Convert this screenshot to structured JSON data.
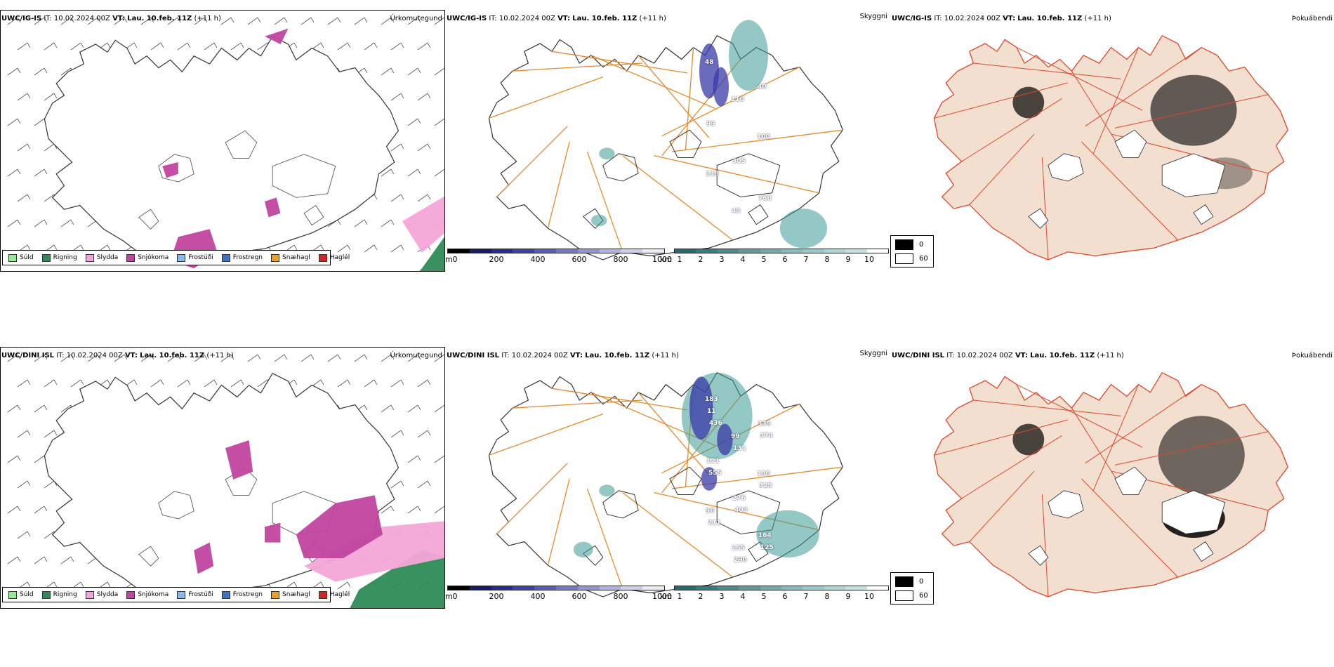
{
  "rows": [
    {
      "model": "UWC/IG-IS",
      "it_label": "IT:",
      "it_value": "10.02.2024 00Z",
      "vt_label": "VT:",
      "vt_value": "Lau. 10.feb. 11Z",
      "lead": "(+11 h)",
      "panel_titles": [
        "Úrkomutegund",
        "Skyggni",
        "Þokuábendi"
      ],
      "visibility_labels": [
        "48",
        "110",
        "100",
        "118",
        "43",
        "40",
        "99",
        "305",
        "760"
      ]
    },
    {
      "model": "UWC/DINI ISL",
      "it_label": "IT:",
      "it_value": "10.02.2024 00Z",
      "vt_label": "VT:",
      "vt_value": "Lau. 10.feb. 11Z",
      "lead": "(+11 h)",
      "panel_titles": [
        "Úrkomutegund",
        "Skyggni",
        "Þokuábendi"
      ],
      "visibility_labels": [
        "183",
        "99",
        "136",
        "96",
        "155",
        "335",
        "121",
        "276",
        "164",
        "11",
        "131",
        "325",
        "211",
        "290",
        "374",
        "555",
        "403",
        "125",
        "436"
      ]
    }
  ],
  "precip_legend": [
    {
      "label": "Súld",
      "color": "#90ee90"
    },
    {
      "label": "Rigning",
      "color": "#2e8b57"
    },
    {
      "label": "Slydda",
      "color": "#f4a6d7"
    },
    {
      "label": "Snjókoma",
      "color": "#c0449e"
    },
    {
      "label": "Frostúði",
      "color": "#87b9f0"
    },
    {
      "label": "Frostregn",
      "color": "#3b73c8"
    },
    {
      "label": "Snæhagl",
      "color": "#f0a020"
    },
    {
      "label": "Haglél",
      "color": "#e02020"
    }
  ],
  "ceiling_scale": {
    "unit": "m",
    "ticks": [
      "0",
      "200",
      "400",
      "600",
      "800",
      "1000"
    ],
    "colors": [
      "#000000",
      "#1a1a6e",
      "#2b2b9a",
      "#4040b0",
      "#5a5ac4",
      "#7777cf",
      "#9494da",
      "#b2b2e5",
      "#cfcff0",
      "#ececf8"
    ]
  },
  "visibility_scale": {
    "unit": "km",
    "ticks": [
      "1",
      "2",
      "3",
      "4",
      "5",
      "6",
      "7",
      "8",
      "9",
      "10"
    ],
    "colors": [
      "#1f6f6f",
      "#2f8080",
      "#449090",
      "#58a0a0",
      "#6cb0b0",
      "#80c0c0",
      "#96cccc",
      "#acd8d8",
      "#c4e4e4",
      "#ffffff"
    ]
  },
  "fog_key": [
    {
      "label": "0",
      "color": "#000000"
    },
    {
      "label": "60",
      "color": "#ffffff"
    }
  ],
  "colors": {
    "land_fog": "#f3dfd0",
    "roads_orange": "#e38a2e",
    "roads_red": "#e0462a",
    "coast": "#333333",
    "snow": "#c0449e",
    "sleet": "#f4a6d7",
    "rain": "#2e8b57",
    "ceiling": "#3a3aa8",
    "visibility": "#3a9a94"
  }
}
